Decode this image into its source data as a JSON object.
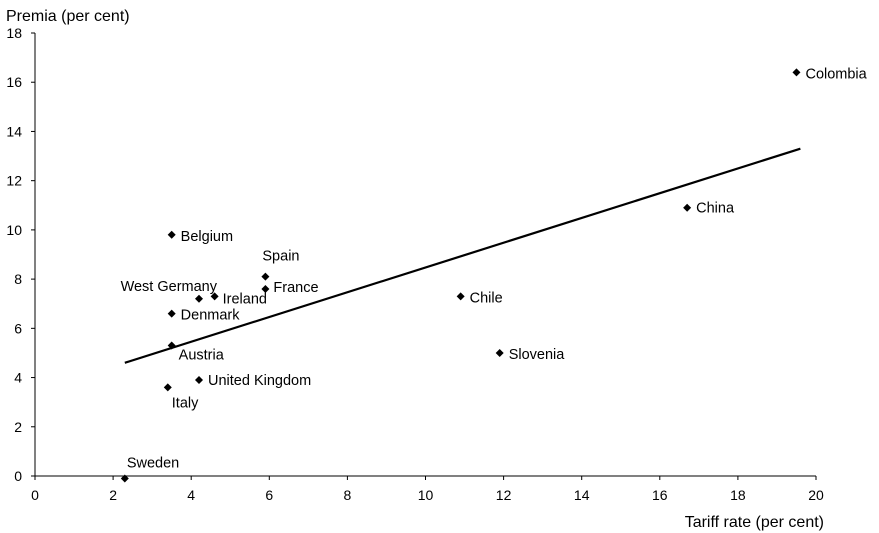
{
  "chart_data": {
    "type": "scatter",
    "title": "",
    "xlabel": "Tariff rate (per cent)",
    "ylabel": "Premia (per cent)",
    "xlim": [
      0,
      20
    ],
    "ylim": [
      0,
      18
    ],
    "xticks": [
      0,
      2,
      4,
      6,
      8,
      10,
      12,
      14,
      16,
      18,
      20
    ],
    "yticks": [
      0,
      2,
      4,
      6,
      8,
      10,
      12,
      14,
      16,
      18
    ],
    "grid": false,
    "legend": "none",
    "marker": "diamond",
    "marker_color": "#000000",
    "points": [
      {
        "label": "Colombia",
        "x": 19.5,
        "y": 16.4
      },
      {
        "label": "China",
        "x": 16.7,
        "y": 10.9
      },
      {
        "label": "Chile",
        "x": 10.9,
        "y": 7.3
      },
      {
        "label": "Slovenia",
        "x": 11.9,
        "y": 5.0
      },
      {
        "label": "Belgium",
        "x": 3.5,
        "y": 9.8
      },
      {
        "label": "Spain",
        "x": 5.9,
        "y": 8.1
      },
      {
        "label": "France",
        "x": 5.9,
        "y": 7.6
      },
      {
        "label": "West Germany",
        "x": 4.2,
        "y": 7.2
      },
      {
        "label": "Ireland",
        "x": 4.6,
        "y": 7.3
      },
      {
        "label": "Denmark",
        "x": 3.5,
        "y": 6.6
      },
      {
        "label": "Austria",
        "x": 3.5,
        "y": 5.3
      },
      {
        "label": "United Kingdom",
        "x": 4.2,
        "y": 3.9
      },
      {
        "label": "Italy",
        "x": 3.4,
        "y": 3.6
      },
      {
        "label": "Sweden",
        "x": 2.3,
        "y": -0.1
      }
    ],
    "trendline": {
      "x": [
        2.3,
        19.6
      ],
      "y": [
        4.6,
        13.3
      ]
    }
  }
}
